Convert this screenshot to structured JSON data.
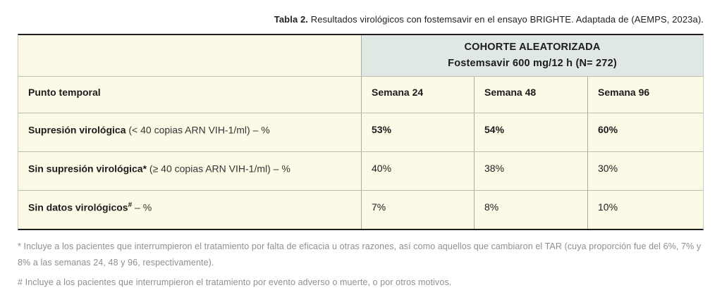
{
  "title": {
    "bold": "Tabla 2.",
    "rest": " Resultados virológicos con fostemsavir en el ensayo BRIGHTE. Adaptada de (AEMPS, 2023a)."
  },
  "table": {
    "cohort_header": {
      "line1": "COHORTE ALEATORIZADA",
      "line2": "Fostemsavir 600 mg/12 h (N= 272)"
    },
    "columns_header": {
      "label": "Punto temporal",
      "cols": [
        "Semana 24",
        "Semana 48",
        "Semana 96"
      ]
    },
    "rows": [
      {
        "label_bold": "Supresión virológica",
        "label_sup": "",
        "label_rest": " (< 40 copias ARN VIH-1/ml) – %",
        "values": [
          "53%",
          "54%",
          "60%"
        ]
      },
      {
        "label_bold": "Sin supresión virológica*",
        "label_sup": "",
        "label_rest": " (≥ 40 copias ARN VIH-1/ml) – %",
        "values": [
          "40%",
          "38%",
          "30%"
        ]
      },
      {
        "label_bold": "Sin datos virológicos",
        "label_sup": "#",
        "label_rest": " – %",
        "values": [
          "7%",
          "8%",
          "10%"
        ]
      }
    ]
  },
  "footnotes": {
    "note1": "* Incluye a los pacientes que interrumpieron el tratamiento por falta de eficacia u otras razones, así como aquellos que cambiaron el TAR (cuya proporción fue del 6%, 7% y 8% a las semanas 24, 48 y 96, respectivamente).",
    "note2": "# Incluye a los pacientes que interrumpieron el tratamiento por evento adverso o muerte, o por otros motivos."
  },
  "colors": {
    "table_background": "#fcf9e7",
    "cohort_header_background": "#dfe8e3",
    "outer_border": "#1e1e1e",
    "grid_line": "#acaca2",
    "footnote_text": "#8f8f8f"
  },
  "chart_data": {
    "type": "table",
    "title": "Tabla 2. Resultados virológicos con fostemsavir en el ensayo BRIGHTE. Adaptada de (AEMPS, 2023a).",
    "group_header": "COHORTE ALEATORIZADA — Fostemsavir 600 mg/12 h (N= 272)",
    "columns": [
      "Punto temporal",
      "Semana 24",
      "Semana 48",
      "Semana 96"
    ],
    "rows": [
      [
        "Supresión virológica (< 40 copias ARN VIH-1/ml) – %",
        "53%",
        "54%",
        "60%"
      ],
      [
        "Sin supresión virológica* (≥ 40 copias ARN VIH-1/ml) – %",
        "40%",
        "38%",
        "30%"
      ],
      [
        "Sin datos virológicos# – %",
        "7%",
        "8%",
        "10%"
      ]
    ]
  }
}
